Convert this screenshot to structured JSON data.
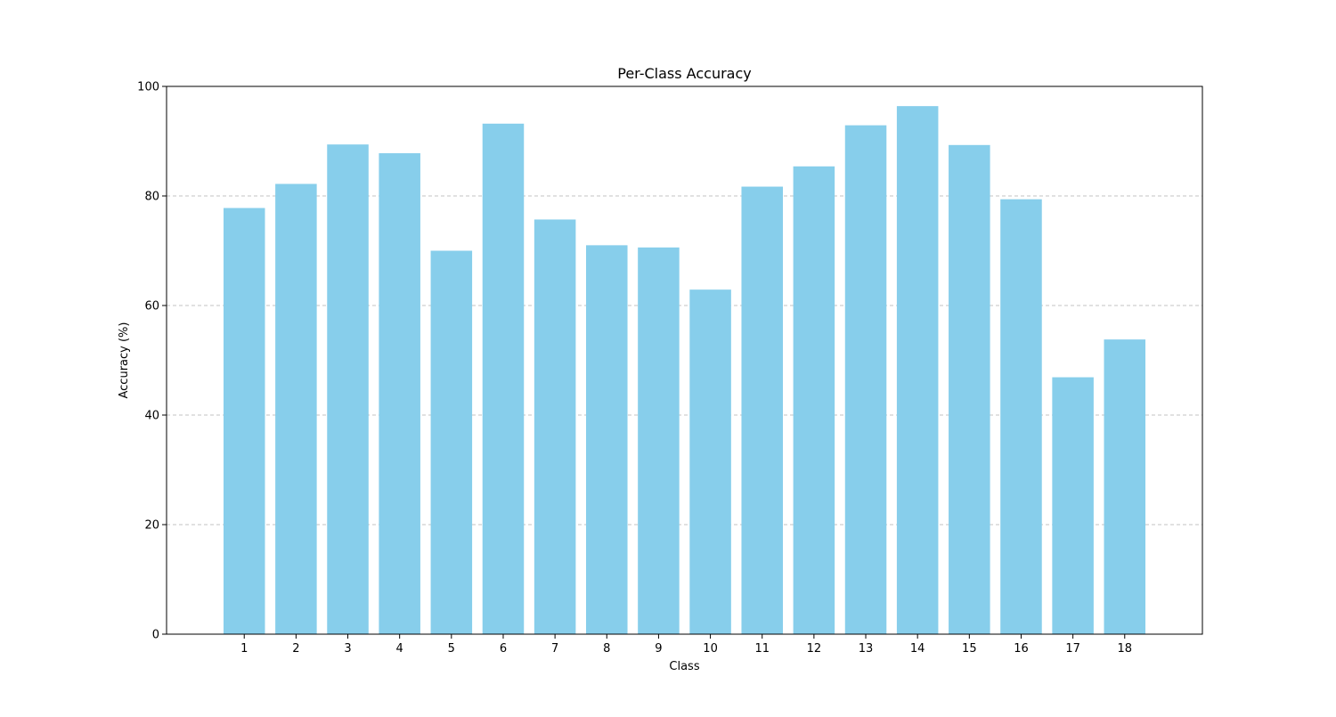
{
  "chart_data": {
    "type": "bar",
    "title": "Per-Class Accuracy",
    "xlabel": "Class",
    "ylabel": "Accuracy (%)",
    "categories": [
      "1",
      "2",
      "3",
      "4",
      "5",
      "6",
      "7",
      "8",
      "9",
      "10",
      "11",
      "12",
      "13",
      "14",
      "15",
      "16",
      "17",
      "18"
    ],
    "values": [
      77.8,
      82.2,
      89.4,
      87.8,
      70.0,
      93.2,
      75.7,
      71.0,
      70.6,
      62.9,
      81.7,
      85.4,
      92.9,
      96.4,
      89.3,
      79.4,
      46.9,
      53.8
    ],
    "ylim": [
      0,
      100
    ],
    "yticks": [
      0,
      20,
      40,
      60,
      80,
      100
    ],
    "grid": "y-dashed",
    "bar_color": "#87ceeb"
  }
}
